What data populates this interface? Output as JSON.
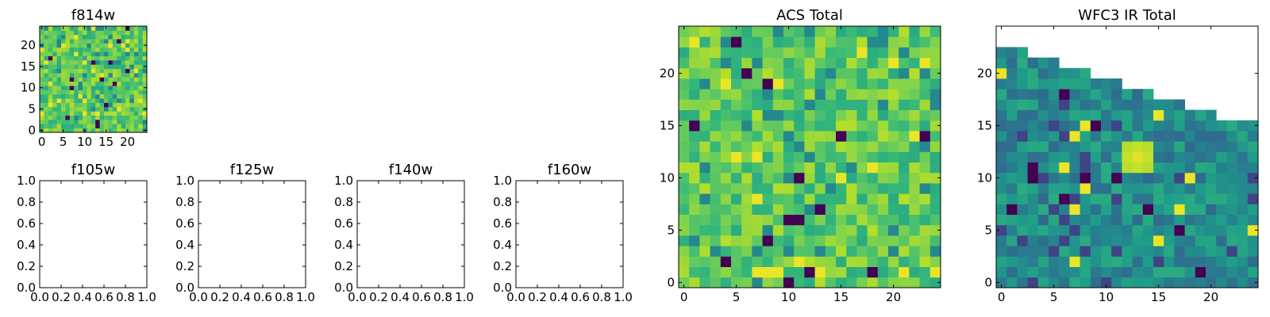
{
  "chart_data": [
    {
      "type": "heatmap",
      "title": "f814w",
      "xlabel": "",
      "ylabel": "",
      "xlim": [
        -0.5,
        24.5
      ],
      "ylim": [
        -0.5,
        24.5
      ],
      "xticks": [
        0,
        5,
        10,
        15,
        20
      ],
      "yticks": [
        0,
        5,
        10,
        15,
        20
      ],
      "colormap": "viridis",
      "grid_size": [
        25,
        25
      ],
      "value_range": [
        0,
        1
      ],
      "dominant_level": 0.75,
      "note": "per-pixel random noise image; bright and dark outlier pixels scattered"
    },
    {
      "type": "empty",
      "title": "f105w",
      "xlim": [
        0.0,
        1.0
      ],
      "ylim": [
        0.0,
        1.0
      ],
      "xticks": [
        "0.0",
        "0.2",
        "0.4",
        "0.6",
        "0.8",
        "1.0"
      ],
      "yticks": [
        "0.0",
        "0.2",
        "0.4",
        "0.6",
        "0.8",
        "1.0"
      ]
    },
    {
      "type": "empty",
      "title": "f125w",
      "xlim": [
        0.0,
        1.0
      ],
      "ylim": [
        0.0,
        1.0
      ],
      "xticks": [
        "0.0",
        "0.2",
        "0.4",
        "0.6",
        "0.8",
        "1.0"
      ],
      "yticks": [
        "0.0",
        "0.2",
        "0.4",
        "0.6",
        "0.8",
        "1.0"
      ]
    },
    {
      "type": "empty",
      "title": "f140w",
      "xlim": [
        0.0,
        1.0
      ],
      "ylim": [
        0.0,
        1.0
      ],
      "xticks": [
        "0.0",
        "0.2",
        "0.4",
        "0.6",
        "0.8",
        "1.0"
      ],
      "yticks": [
        "0.0",
        "0.2",
        "0.4",
        "0.6",
        "0.8",
        "1.0"
      ]
    },
    {
      "type": "empty",
      "title": "f160w",
      "xlim": [
        0.0,
        1.0
      ],
      "ylim": [
        0.0,
        1.0
      ],
      "xticks": [
        "0.0",
        "0.2",
        "0.4",
        "0.6",
        "0.8",
        "1.0"
      ],
      "yticks": [
        "0.0",
        "0.2",
        "0.4",
        "0.6",
        "0.8",
        "1.0"
      ]
    },
    {
      "type": "heatmap",
      "title": "ACS Total",
      "xlim": [
        -0.5,
        24.5
      ],
      "ylim": [
        -0.5,
        24.5
      ],
      "xticks": [
        0,
        5,
        10,
        15,
        20
      ],
      "yticks": [
        0,
        5,
        10,
        15,
        20
      ],
      "colormap": "viridis",
      "grid_size": [
        25,
        25
      ],
      "value_range": [
        0,
        1
      ],
      "dominant_level": 0.75,
      "note": "per-pixel random noise image, mostly green-yellow with a few dark pixels"
    },
    {
      "type": "heatmap",
      "title": "WFC3 IR Total",
      "xlim": [
        -0.5,
        24.5
      ],
      "ylim": [
        -0.5,
        24.5
      ],
      "xticks": [
        0,
        5,
        10,
        15,
        20
      ],
      "yticks": [
        0,
        5,
        10,
        15,
        20
      ],
      "colormap": "viridis",
      "grid_size": [
        25,
        25
      ],
      "value_range": [
        0,
        1
      ],
      "dominant_level": 0.48,
      "coverage_top_row_by_column": [
        22,
        22,
        22,
        21,
        21,
        21,
        20,
        20,
        20,
        19,
        19,
        19,
        18,
        18,
        18,
        17,
        17,
        17,
        16,
        16,
        16,
        15,
        15,
        15,
        15
      ],
      "bright_spot": {
        "center": [
          13,
          12
        ],
        "level": 0.95
      },
      "note": "stepped diagonal coverage edge, blank above; teal noise with a bright yellow spot near (13, 12)"
    }
  ]
}
